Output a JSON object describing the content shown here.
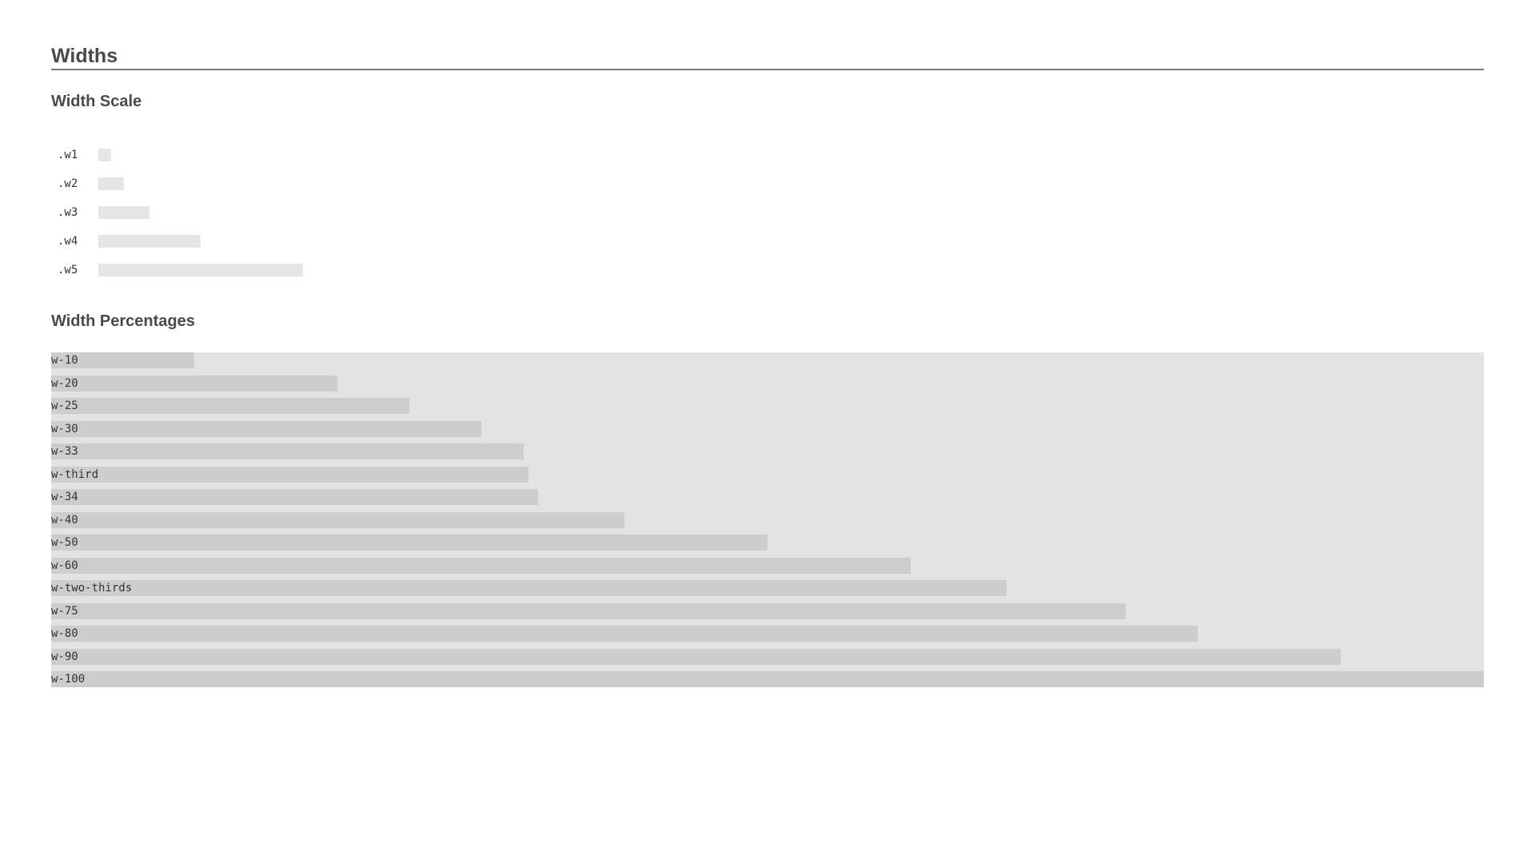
{
  "page": {
    "title": "Widths"
  },
  "width_scale": {
    "title": "Width Scale",
    "items": [
      {
        "label": ".w1"
      },
      {
        "label": ".w2"
      },
      {
        "label": ".w3"
      },
      {
        "label": ".w4"
      },
      {
        "label": ".w5"
      }
    ]
  },
  "width_percentages": {
    "title": "Width Percentages",
    "items": [
      {
        "label": "w-10",
        "percent": 10
      },
      {
        "label": "w-20",
        "percent": 20
      },
      {
        "label": "w-25",
        "percent": 25
      },
      {
        "label": "w-30",
        "percent": 30
      },
      {
        "label": "w-33",
        "percent": 33
      },
      {
        "label": "w-third",
        "percent": 33.333
      },
      {
        "label": "w-34",
        "percent": 34
      },
      {
        "label": "w-40",
        "percent": 40
      },
      {
        "label": "w-50",
        "percent": 50
      },
      {
        "label": "w-60",
        "percent": 60
      },
      {
        "label": "w-two-thirds",
        "percent": 66.667
      },
      {
        "label": "w-75",
        "percent": 75
      },
      {
        "label": "w-80",
        "percent": 80
      },
      {
        "label": "w-90",
        "percent": 90
      },
      {
        "label": "w-100",
        "percent": 100
      }
    ]
  },
  "colors": {
    "track": "#e3e3e3",
    "bar": "#cdcdcd",
    "scale_bar": "#e6e6e6",
    "heading": "#4a4a4a"
  }
}
